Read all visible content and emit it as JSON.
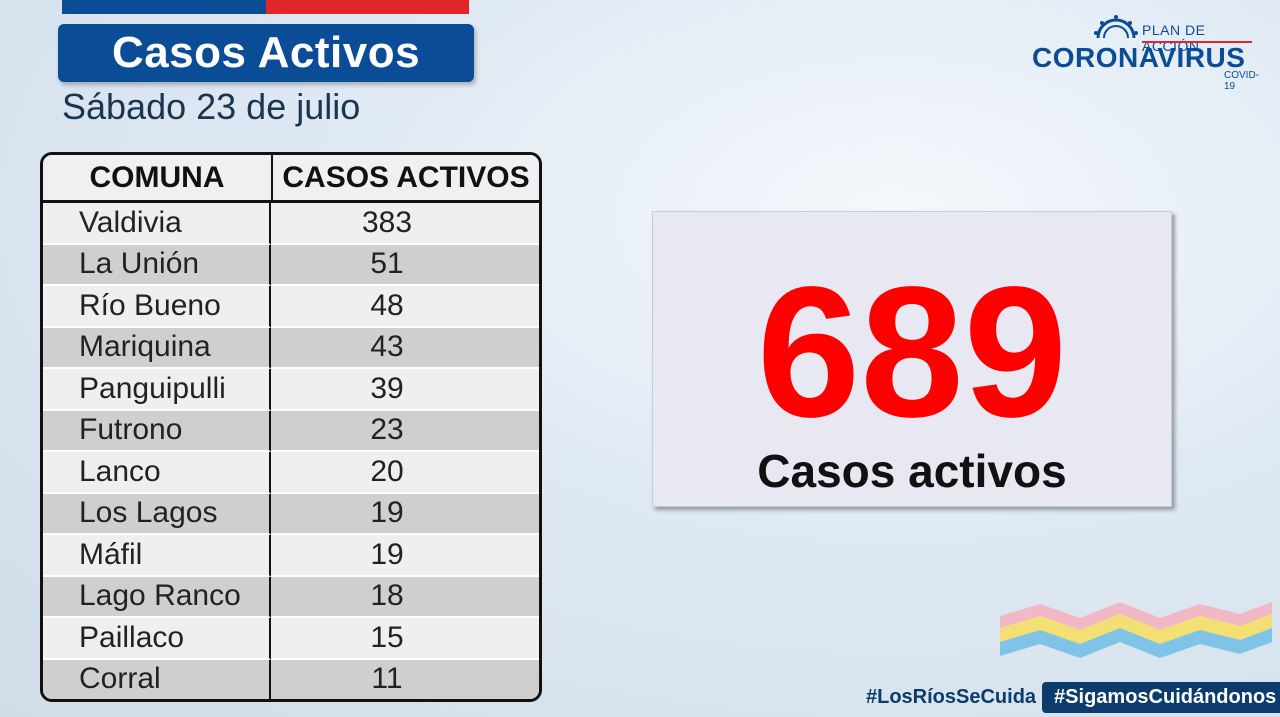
{
  "header": {
    "title": "Casos Activos",
    "date": "Sábado 23 de julio"
  },
  "logo": {
    "plan": "PLAN DE ACCIÓN",
    "name": "CORONAVIRUS",
    "sub": "COVID-19"
  },
  "table": {
    "headers": [
      "COMUNA",
      "CASOS ACTIVOS"
    ],
    "rows": [
      {
        "comuna": "Valdivia",
        "casos": "383"
      },
      {
        "comuna": "La Unión",
        "casos": "51"
      },
      {
        "comuna": "Río Bueno",
        "casos": "48"
      },
      {
        "comuna": "Mariquina",
        "casos": "43"
      },
      {
        "comuna": "Panguipulli",
        "casos": "39"
      },
      {
        "comuna": "Futrono",
        "casos": "23"
      },
      {
        "comuna": "Lanco",
        "casos": "20"
      },
      {
        "comuna": "Los Lagos",
        "casos": "19"
      },
      {
        "comuna": "Máfil",
        "casos": "19"
      },
      {
        "comuna": "Lago Ranco",
        "casos": "18"
      },
      {
        "comuna": "Paillaco",
        "casos": "15"
      },
      {
        "comuna": "Corral",
        "casos": "11"
      }
    ]
  },
  "total": {
    "value": "689",
    "label": "Casos activos"
  },
  "hashtags": [
    "#LosRíosSeCuida",
    "#SigamosCuidándonos"
  ],
  "colors": {
    "brand_blue": "#0b4c96",
    "brand_red": "#e0262b",
    "total_red": "#ff0000"
  }
}
